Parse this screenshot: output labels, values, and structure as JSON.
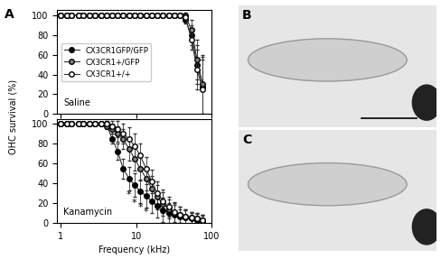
{
  "panel_labels": [
    "A",
    "B",
    "C"
  ],
  "y_label": "OHC survival (%)",
  "chart_data": [
    {
      "type": "line",
      "label": "Saline",
      "log": "x",
      "legend": "center left",
      "tick_labels": "y",
      "x": [
        1.0,
        1.2,
        1.4,
        1.7,
        2.0,
        2.4,
        2.8,
        3.4,
        4.0,
        4.8,
        5.7,
        6.7,
        8.0,
        9.5,
        11.3,
        13.5,
        16,
        19,
        22.6,
        27,
        32,
        38,
        45,
        54,
        64,
        76
      ],
      "xlim": [
        0.9,
        100
      ],
      "xticks": [
        1,
        10,
        100
      ],
      "ylim": [
        0,
        105
      ],
      "yticks": [
        0,
        20,
        40,
        60,
        80,
        100
      ],
      "series": [
        {
          "name": "CX3CR1GFP/GFP",
          "color": "#000000",
          "marker": "o",
          "values": [
            100,
            100,
            100,
            100,
            100,
            100,
            100,
            100,
            100,
            100,
            100,
            100,
            100,
            100,
            100,
            100,
            100,
            100,
            100,
            100,
            100,
            100,
            95,
            80,
            50,
            28
          ],
          "errors": [
            0,
            0,
            0,
            0,
            0,
            0,
            0,
            0,
            0,
            0,
            0,
            0,
            0,
            0,
            0,
            0,
            0,
            0,
            0,
            0,
            0,
            0,
            3,
            10,
            20,
            30
          ]
        },
        {
          "name": "CX3CR1+/GFP",
          "color": "#808080",
          "marker": "o",
          "values": [
            100,
            100,
            100,
            100,
            100,
            100,
            100,
            100,
            100,
            100,
            100,
            100,
            100,
            100,
            100,
            100,
            100,
            100,
            100,
            100,
            100,
            100,
            100,
            85,
            55,
            30
          ],
          "errors": [
            0,
            0,
            0,
            0,
            0,
            0,
            0,
            0,
            0,
            0,
            0,
            0,
            0,
            0,
            0,
            0,
            0,
            0,
            0,
            0,
            0,
            0,
            3,
            10,
            20,
            30
          ]
        },
        {
          "name": "CX3CR1+/+",
          "color": "#ffffff",
          "marker": "o",
          "values": [
            100,
            100,
            100,
            100,
            100,
            100,
            100,
            100,
            100,
            100,
            100,
            100,
            100,
            100,
            100,
            100,
            100,
            100,
            100,
            100,
            100,
            100,
            98,
            75,
            45,
            25
          ],
          "errors": [
            0,
            0,
            0,
            0,
            0,
            0,
            0,
            0,
            0,
            0,
            0,
            0,
            0,
            0,
            0,
            0,
            0,
            0,
            0,
            0,
            0,
            0,
            3,
            10,
            20,
            30
          ]
        }
      ]
    },
    {
      "type": "line",
      "label": "Kanamycin",
      "log": "x",
      "x_label": "Frequency (kHz)",
      "x": [
        1.0,
        1.2,
        1.4,
        1.7,
        2.0,
        2.4,
        2.8,
        3.4,
        4.0,
        4.8,
        5.7,
        6.7,
        8.0,
        9.5,
        11.3,
        13.5,
        16,
        19,
        22.6,
        27,
        32,
        38,
        45,
        54,
        64,
        76
      ],
      "xlim": [
        0.9,
        100
      ],
      "xticks": [
        1,
        10,
        100
      ],
      "ylim": [
        0,
        105
      ],
      "yticks": [
        0,
        20,
        40,
        60,
        80,
        100
      ],
      "annotations": [
        {
          "text": "*",
          "x": 8.0,
          "y": 28
        },
        {
          "text": "*",
          "x": 9.5,
          "y": 20
        },
        {
          "text": "*",
          "x": 11.3,
          "y": 15
        },
        {
          "text": "*",
          "x": 13.5,
          "y": 11
        }
      ],
      "series": [
        {
          "name": "CX3CR1GFP/GFP",
          "color": "#000000",
          "marker": "o",
          "values": [
            100,
            100,
            100,
            100,
            100,
            100,
            100,
            100,
            100,
            85,
            72,
            55,
            45,
            38,
            32,
            27,
            22,
            17,
            13,
            10,
            8,
            6,
            5,
            4,
            3,
            2
          ],
          "errors": [
            0,
            0,
            0,
            0,
            0,
            0,
            0,
            0,
            3,
            5,
            8,
            10,
            12,
            12,
            12,
            12,
            12,
            12,
            12,
            10,
            10,
            8,
            8,
            6,
            6,
            5
          ]
        },
        {
          "name": "CX3CR1+/GFP",
          "color": "#808080",
          "marker": "o",
          "values": [
            100,
            100,
            100,
            100,
            100,
            100,
            100,
            100,
            98,
            95,
            90,
            85,
            75,
            65,
            55,
            45,
            35,
            26,
            19,
            14,
            10,
            8,
            6,
            5,
            4,
            3
          ],
          "errors": [
            0,
            0,
            0,
            0,
            0,
            0,
            0,
            0,
            3,
            5,
            8,
            10,
            12,
            12,
            12,
            12,
            12,
            12,
            12,
            10,
            10,
            8,
            8,
            6,
            6,
            5
          ]
        },
        {
          "name": "CX3CR1+/+",
          "color": "#ffffff",
          "marker": "o",
          "values": [
            100,
            100,
            100,
            100,
            100,
            100,
            100,
            100,
            100,
            98,
            95,
            90,
            85,
            78,
            68,
            55,
            42,
            30,
            22,
            16,
            11,
            8,
            6,
            5,
            4,
            3
          ],
          "errors": [
            0,
            0,
            0,
            0,
            0,
            0,
            0,
            0,
            3,
            5,
            8,
            10,
            12,
            12,
            12,
            12,
            12,
            12,
            12,
            10,
            10,
            8,
            8,
            6,
            6,
            5
          ]
        }
      ]
    }
  ]
}
